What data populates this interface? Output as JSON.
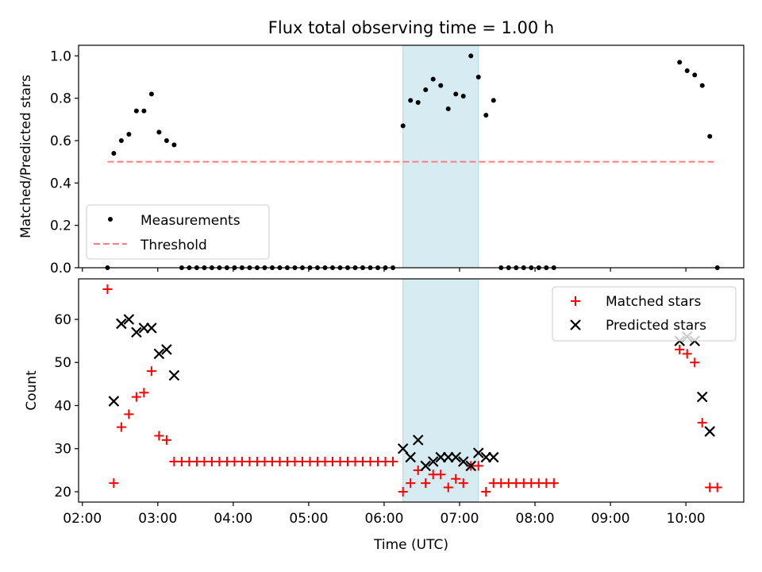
{
  "figure": {
    "title": "Flux total observing time = 1.00 h",
    "xlabel": "Time (UTC)",
    "x_tick_labels": [
      "02:00",
      "03:00",
      "04:00",
      "05:00",
      "06:00",
      "07:00",
      "08:00",
      "09:00",
      "10:00"
    ]
  },
  "colors": {
    "measurements": "#000000",
    "threshold": "#ff7f7f",
    "matched": "#ff0000",
    "predicted": "#000000",
    "highlight": "#add8e6"
  },
  "chart_data": [
    {
      "type": "scatter",
      "panel": "top",
      "ylabel": "Matched/Predicted stars",
      "xlim": [
        "01:57",
        "10:46"
      ],
      "ylim": [
        0,
        1.05
      ],
      "y_ticks": [
        0.0,
        0.2,
        0.4,
        0.6,
        0.8,
        1.0
      ],
      "y_tick_labels": [
        "0.0",
        "0.2",
        "0.4",
        "0.6",
        "0.8",
        "1.0"
      ],
      "highlight_span": [
        "06:15",
        "07:15"
      ],
      "legend": {
        "placement": "lower-left",
        "entries": [
          "Measurements",
          "Threshold"
        ]
      },
      "series": [
        {
          "name": "Measurements",
          "marker": "dot",
          "x": [
            "02:20",
            "02:25",
            "02:31",
            "02:37",
            "02:43",
            "02:49",
            "02:55",
            "03:01",
            "03:07",
            "03:13",
            "03:19",
            "03:25",
            "03:31",
            "03:37",
            "03:43",
            "03:49",
            "03:55",
            "04:01",
            "04:07",
            "04:13",
            "04:19",
            "04:25",
            "04:31",
            "04:37",
            "04:43",
            "04:49",
            "04:55",
            "05:01",
            "05:07",
            "05:13",
            "05:19",
            "05:25",
            "05:31",
            "05:37",
            "05:43",
            "05:49",
            "05:55",
            "06:01",
            "06:07",
            "06:15",
            "06:21",
            "06:27",
            "06:33",
            "06:39",
            "06:45",
            "06:51",
            "06:57",
            "07:03",
            "07:09",
            "07:15",
            "07:21",
            "07:27",
            "07:33",
            "07:39",
            "07:45",
            "07:51",
            "07:57",
            "08:03",
            "08:09",
            "08:15",
            "09:55",
            "10:01",
            "10:07",
            "10:13",
            "10:19",
            "10:25"
          ],
          "y": [
            0,
            0.54,
            0.6,
            0.63,
            0.74,
            0.74,
            0.82,
            0.64,
            0.6,
            0.58,
            0,
            0,
            0,
            0,
            0,
            0,
            0,
            0,
            0,
            0,
            0,
            0,
            0,
            0,
            0,
            0,
            0,
            0,
            0,
            0,
            0,
            0,
            0,
            0,
            0,
            0,
            0,
            0,
            0,
            0.67,
            0.79,
            0.78,
            0.84,
            0.89,
            0.86,
            0.75,
            0.82,
            0.81,
            1.0,
            0.9,
            0.72,
            0.79,
            0,
            0,
            0,
            0,
            0,
            0,
            0,
            0,
            0.97,
            0.93,
            0.91,
            0.86,
            0.62,
            0
          ]
        },
        {
          "name": "Threshold",
          "marker": "dashed-line",
          "x": [
            "02:20",
            "10:25"
          ],
          "y": [
            0.5,
            0.5
          ]
        }
      ]
    },
    {
      "type": "scatter",
      "panel": "bottom",
      "ylabel": "Count",
      "xlim": [
        "01:57",
        "10:46"
      ],
      "ylim": [
        17.6,
        69.4
      ],
      "y_ticks": [
        20,
        30,
        40,
        50,
        60
      ],
      "y_tick_labels": [
        "20",
        "30",
        "40",
        "50",
        "60"
      ],
      "highlight_span": [
        "06:15",
        "07:15"
      ],
      "legend": {
        "placement": "top-right",
        "entries": [
          "Matched stars",
          "Predicted stars"
        ]
      },
      "series": [
        {
          "name": "Matched stars",
          "marker": "plus",
          "x": [
            "02:20",
            "02:25",
            "02:31",
            "02:37",
            "02:43",
            "02:49",
            "02:55",
            "03:01",
            "03:07",
            "03:13",
            "03:19",
            "03:25",
            "03:31",
            "03:37",
            "03:43",
            "03:49",
            "03:55",
            "04:01",
            "04:07",
            "04:13",
            "04:19",
            "04:25",
            "04:31",
            "04:37",
            "04:43",
            "04:49",
            "04:55",
            "05:01",
            "05:07",
            "05:13",
            "05:19",
            "05:25",
            "05:31",
            "05:37",
            "05:43",
            "05:49",
            "05:55",
            "06:01",
            "06:07",
            "06:15",
            "06:21",
            "06:27",
            "06:33",
            "06:39",
            "06:45",
            "06:51",
            "06:57",
            "07:03",
            "07:09",
            "07:15",
            "07:21",
            "07:27",
            "07:33",
            "07:39",
            "07:45",
            "07:51",
            "07:57",
            "08:03",
            "08:09",
            "08:15",
            "09:55",
            "10:01",
            "10:07",
            "10:13",
            "10:19",
            "10:25"
          ],
          "y": [
            67,
            22,
            35,
            38,
            42,
            43,
            48,
            33,
            32,
            27,
            27,
            27,
            27,
            27,
            27,
            27,
            27,
            27,
            27,
            27,
            27,
            27,
            27,
            27,
            27,
            27,
            27,
            27,
            27,
            27,
            27,
            27,
            27,
            27,
            27,
            27,
            27,
            27,
            27,
            20,
            22,
            25,
            22,
            24,
            24,
            21,
            23,
            22,
            26,
            26,
            20,
            22,
            22,
            22,
            22,
            22,
            22,
            22,
            22,
            22,
            53,
            52,
            50,
            36,
            21,
            21
          ]
        },
        {
          "name": "Predicted stars",
          "marker": "x",
          "x": [
            "02:25",
            "02:31",
            "02:37",
            "02:43",
            "02:49",
            "02:55",
            "03:01",
            "03:07",
            "03:13",
            "06:15",
            "06:21",
            "06:27",
            "06:33",
            "06:39",
            "06:45",
            "06:51",
            "06:57",
            "07:03",
            "07:09",
            "07:15",
            "07:21",
            "07:27",
            "09:55",
            "10:01",
            "10:07",
            "10:13",
            "10:19"
          ],
          "y": [
            41,
            59,
            60,
            57,
            58,
            58,
            52,
            53,
            47,
            30,
            28,
            32,
            26,
            27,
            28,
            28,
            28,
            27,
            26,
            29,
            28,
            28,
            55,
            56,
            55,
            42,
            34
          ]
        }
      ]
    }
  ]
}
